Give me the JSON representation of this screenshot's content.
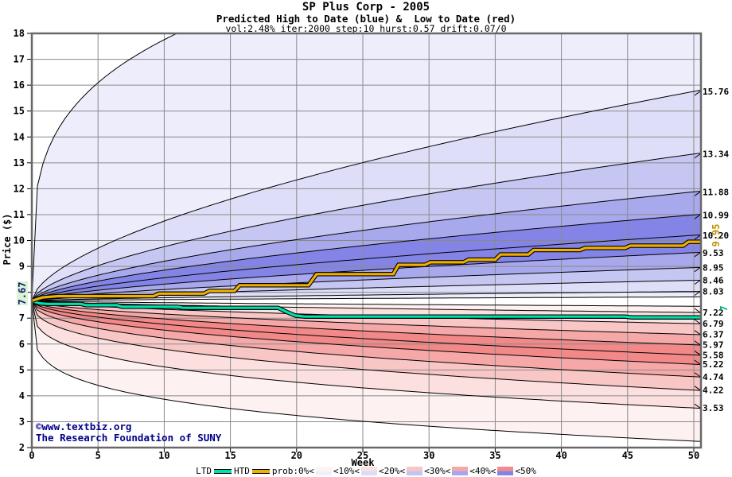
{
  "title": {
    "line1": "SP Plus Corp - 2005",
    "line2": "Predicted High to Date (blue) &  Low to Date (red)",
    "line3": "vol:2.48% iter:2000 step:10 hurst:0.57 drift:0.07/0"
  },
  "watermark": {
    "line1": "©www.textbiz.org",
    "line2": "The Research Foundation of SUNY"
  },
  "annotations": {
    "start_price_label": "7.67",
    "htd_final_label": "9.95",
    "ltd_final_label": "7"
  },
  "legend": {
    "ltd_label": "LTD",
    "htd_label": "HTD",
    "prob_labels": [
      "prob:0%<",
      "<10%<",
      "<20%<",
      "<30%<",
      "<40%<",
      "<50%"
    ],
    "swatches": [
      [
        "#fdf3f3",
        "#f0f0fd"
      ],
      [
        "#fbe0e0",
        "#dcdcf8"
      ],
      [
        "#f9c6c6",
        "#c4c4f2"
      ],
      [
        "#f6a8a8",
        "#a6a6ec"
      ],
      [
        "#f28c8c",
        "#8484e4"
      ]
    ]
  },
  "chart_data": {
    "type": "area",
    "subtype": "probability-fan",
    "title": "SP Plus Corp - 2005",
    "xlabel": "Week",
    "ylabel": "Price ($)",
    "x_range": [
      0,
      50
    ],
    "y_range": [
      2,
      18
    ],
    "x_ticks": [
      0,
      5,
      10,
      15,
      20,
      25,
      30,
      35,
      40,
      45,
      50
    ],
    "y_ticks": [
      2,
      3,
      4,
      5,
      6,
      7,
      8,
      9,
      10,
      11,
      12,
      13,
      14,
      15,
      16,
      17,
      18
    ],
    "grid": true,
    "start_week": 0,
    "start_price": 7.67,
    "high_fan": {
      "name": "Predicted High to Date",
      "color_scale": [
        "#ededfc",
        "#dedef8",
        "#c6c6f2",
        "#a8a8ec",
        "#8484e6"
      ],
      "contours": [
        {
          "end": 23.0,
          "alpha": 0.26,
          "label": null
        },
        {
          "end": 15.76,
          "alpha": 0.6,
          "label": "15.76"
        },
        {
          "end": 13.34,
          "alpha": 0.62,
          "label": "13.34"
        },
        {
          "end": 11.88,
          "alpha": 0.63,
          "label": "11.88"
        },
        {
          "end": 10.99,
          "alpha": 0.64,
          "label": "10.99"
        },
        {
          "end": 10.2,
          "alpha": 0.65,
          "label": "10.20"
        },
        {
          "end": 9.53,
          "alpha": 0.66,
          "label": "9.53"
        },
        {
          "end": 8.95,
          "alpha": 0.67,
          "label": "8.95"
        },
        {
          "end": 8.46,
          "alpha": 0.68,
          "label": "8.46"
        },
        {
          "end": 8.03,
          "alpha": 0.69,
          "label": "8.03"
        },
        {
          "end": 7.82,
          "alpha": 0.7,
          "label": null
        }
      ]
    },
    "low_fan": {
      "name": "Predicted Low to Date",
      "color_scale": [
        "#fdf1f1",
        "#fce0e0",
        "#f9c6c6",
        "#f6a8a8",
        "#f28888"
      ],
      "contours": [
        {
          "end": 2.25,
          "alpha": 0.22,
          "label": null
        },
        {
          "end": 3.53,
          "alpha": 0.3,
          "label": "3.53"
        },
        {
          "end": 4.22,
          "alpha": 0.38,
          "label": "4.22"
        },
        {
          "end": 4.74,
          "alpha": 0.44,
          "label": "4.74"
        },
        {
          "end": 5.22,
          "alpha": 0.48,
          "label": "5.22"
        },
        {
          "end": 5.58,
          "alpha": 0.52,
          "label": "5.58"
        },
        {
          "end": 5.97,
          "alpha": 0.55,
          "label": "5.97"
        },
        {
          "end": 6.37,
          "alpha": 0.58,
          "label": "6.37"
        },
        {
          "end": 6.79,
          "alpha": 0.61,
          "label": "6.79"
        },
        {
          "end": 7.22,
          "alpha": 0.64,
          "label": "7.22"
        },
        {
          "end": 7.46,
          "alpha": 0.66,
          "label": null
        }
      ]
    },
    "htd_line": {
      "name": "HTD",
      "color": "#f0b000",
      "final_value": 9.95,
      "points": [
        [
          0,
          7.67
        ],
        [
          0.8,
          7.8
        ],
        [
          2,
          7.85
        ],
        [
          9.2,
          7.85
        ],
        [
          9.6,
          7.95
        ],
        [
          13,
          7.95
        ],
        [
          13.4,
          8.05
        ],
        [
          15.3,
          8.05
        ],
        [
          15.7,
          8.27
        ],
        [
          20.9,
          8.27
        ],
        [
          21.5,
          8.7
        ],
        [
          27.3,
          8.7
        ],
        [
          27.7,
          9.06
        ],
        [
          29.7,
          9.06
        ],
        [
          30.1,
          9.16
        ],
        [
          32.6,
          9.16
        ],
        [
          33.0,
          9.26
        ],
        [
          35.0,
          9.26
        ],
        [
          35.4,
          9.46
        ],
        [
          37.5,
          9.46
        ],
        [
          37.9,
          9.63
        ],
        [
          41.4,
          9.63
        ],
        [
          41.8,
          9.71
        ],
        [
          44.8,
          9.71
        ],
        [
          45.2,
          9.8
        ],
        [
          49.2,
          9.8
        ],
        [
          49.6,
          9.95
        ],
        [
          50.5,
          9.95
        ]
      ]
    },
    "ltd_line": {
      "name": "LTD",
      "color": "#00e0ac",
      "final_value": 7.0,
      "points": [
        [
          0,
          7.67
        ],
        [
          0.6,
          7.57
        ],
        [
          1.2,
          7.55
        ],
        [
          3.7,
          7.55
        ],
        [
          4.1,
          7.5
        ],
        [
          6.4,
          7.5
        ],
        [
          6.8,
          7.44
        ],
        [
          11,
          7.44
        ],
        [
          11.4,
          7.4
        ],
        [
          18.6,
          7.4
        ],
        [
          19.2,
          7.25
        ],
        [
          19.9,
          7.1
        ],
        [
          20.6,
          7.06
        ],
        [
          44.8,
          7.06
        ],
        [
          45.3,
          7.03
        ],
        [
          50.5,
          7.03
        ]
      ]
    },
    "colors": {
      "grid": "#8a8a8a",
      "border": "#686868",
      "contour": "#000000",
      "background": "#ffffff"
    }
  }
}
